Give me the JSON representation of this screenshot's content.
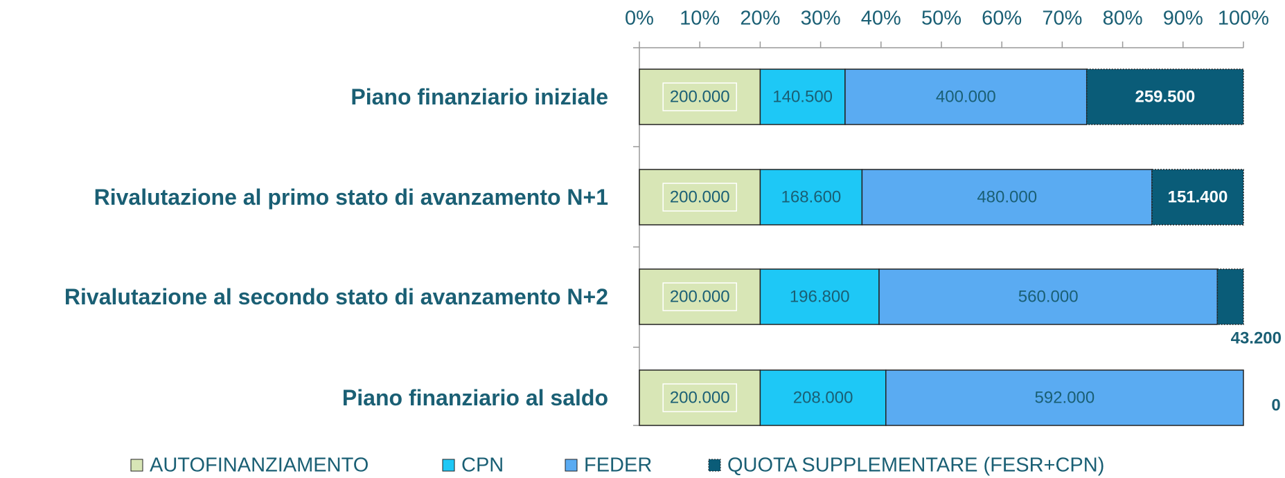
{
  "chart_data": {
    "type": "bar",
    "orientation": "horizontal",
    "stacking": "percent",
    "categories": [
      "Piano finanziario iniziale",
      "Rivalutazione al primo stato di avanzamento N+1",
      "Rivalutazione al secondo stato di avanzamento N+2",
      "Piano finanziario al saldo"
    ],
    "series": [
      {
        "name": "AUTOFINANZIAMENTO",
        "color": "#d8e6b6",
        "values": [
          200000,
          200000,
          200000,
          200000
        ],
        "value_labels": [
          "200.000",
          "200.000",
          "200.000",
          "200.000"
        ]
      },
      {
        "name": "CPN",
        "color": "#1ec8f6",
        "values": [
          140500,
          168600,
          196800,
          208000
        ],
        "value_labels": [
          "140.500",
          "168.600",
          "196.800",
          "208.000"
        ]
      },
      {
        "name": "FEDER",
        "color": "#5aabf2",
        "values": [
          400000,
          480000,
          560000,
          592000
        ],
        "value_labels": [
          "400.000",
          "480.000",
          "560.000",
          "592.000"
        ]
      },
      {
        "name": "QUOTA SUPPLEMENTARE (FESR+CPN)",
        "color": "#0a5c78",
        "values": [
          259500,
          151400,
          43200,
          0
        ],
        "value_labels": [
          "259.500",
          "151.400",
          "43.200",
          "0"
        ]
      }
    ],
    "xlim": [
      0,
      100
    ],
    "xticks": [
      {
        "value": 0,
        "label": "0%"
      },
      {
        "value": 10,
        "label": "10%"
      },
      {
        "value": 20,
        "label": "20%"
      },
      {
        "value": 30,
        "label": "30%"
      },
      {
        "value": 40,
        "label": "40%"
      },
      {
        "value": 50,
        "label": "50%"
      },
      {
        "value": 60,
        "label": "60%"
      },
      {
        "value": 70,
        "label": "70%"
      },
      {
        "value": 80,
        "label": "80%"
      },
      {
        "value": 90,
        "label": "90%"
      },
      {
        "value": 100,
        "label": "100%"
      }
    ],
    "legend": "bottom"
  }
}
